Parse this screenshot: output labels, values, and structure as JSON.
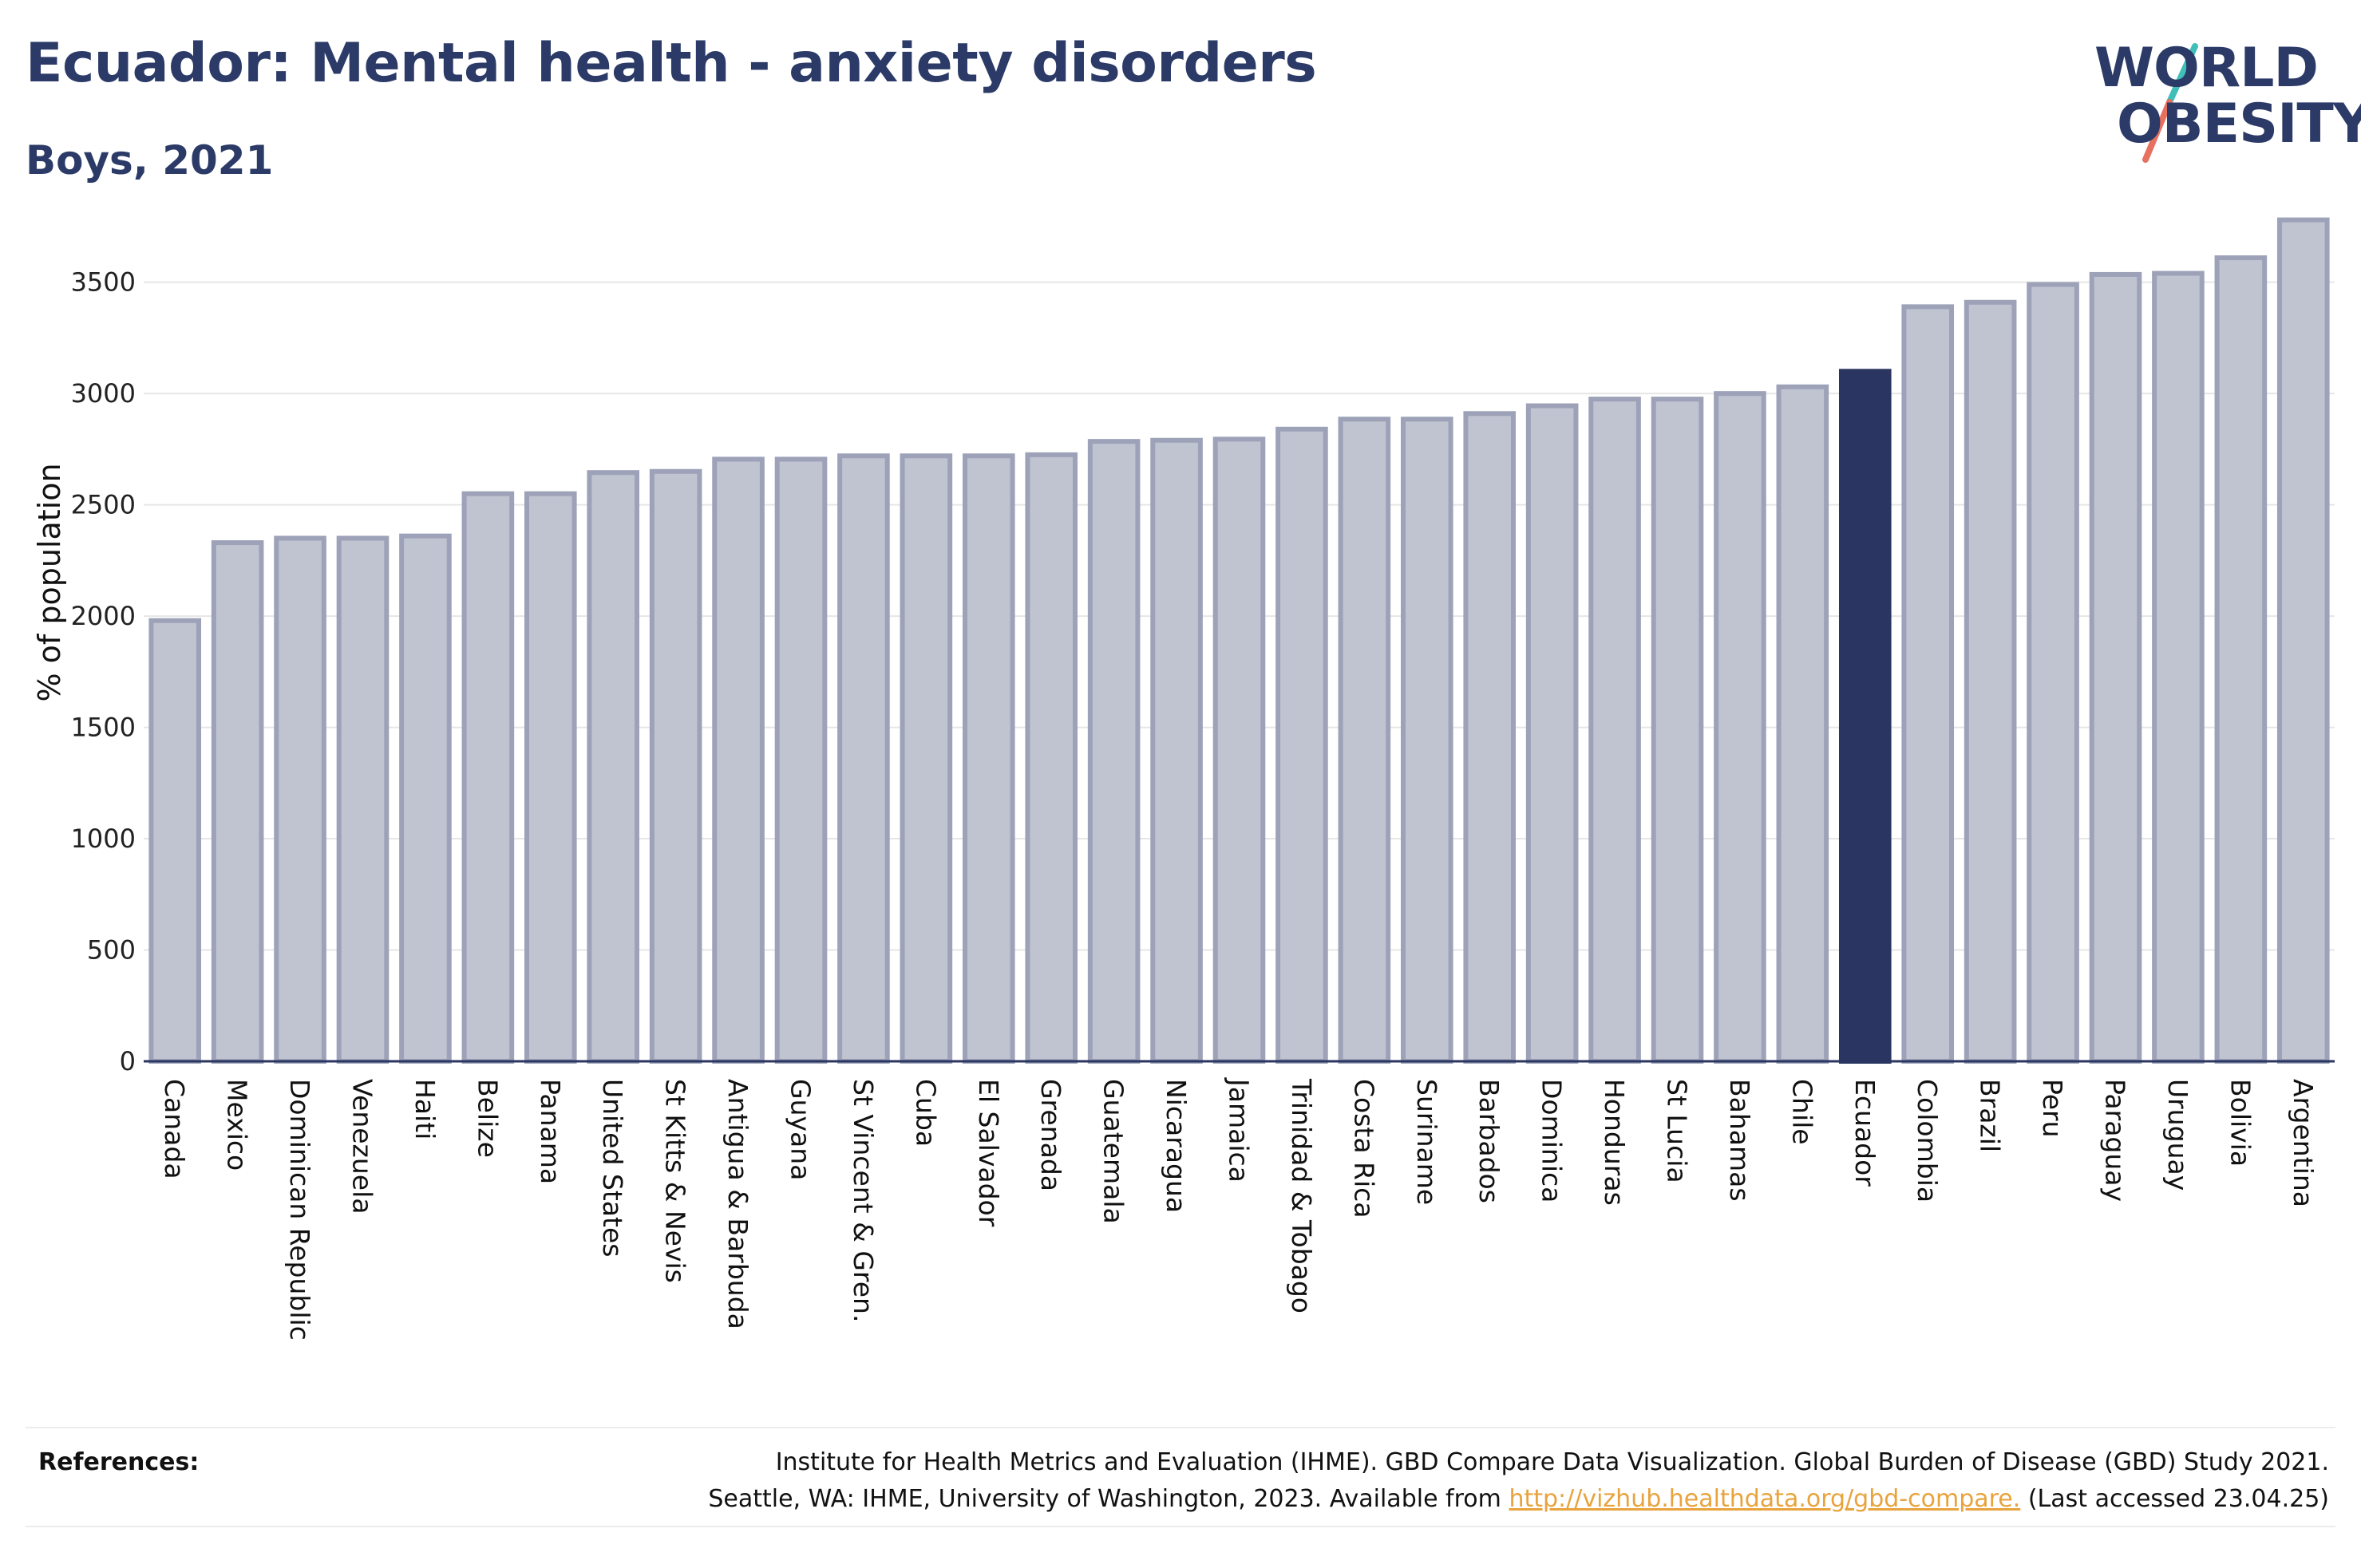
{
  "header": {
    "title": "Ecuador: Mental health - anxiety disorders",
    "subtitle": "Boys, 2021"
  },
  "logo": {
    "line1": "WORLD",
    "line2": "OBESITY",
    "colors": {
      "text": "#2b3a67",
      "slash_top": "#3fbfb8",
      "slash_bottom": "#e8705f"
    }
  },
  "references": {
    "label": "References:",
    "line1": "Institute for Health Metrics and Evaluation (IHME). GBD Compare Data Visualization. Global Burden of Disease (GBD) Study 2021.",
    "line2_prefix": "Seattle, WA: IHME, University of Washington, 2023. Available from",
    "link": "http://vizhub.healthdata.org/gbd-compare.",
    "line2_suffix": "(Last accessed 23.04.25)"
  },
  "chart_data": {
    "type": "bar",
    "ylabel": "% of population",
    "xlabel": "",
    "ylim": [
      0,
      3800
    ],
    "yticks": [
      0,
      500,
      1000,
      1500,
      2000,
      2500,
      3000,
      3500
    ],
    "grid": true,
    "highlight": "Ecuador",
    "colors": {
      "bar": "#c0c3d0",
      "bar_edge": "#9da2b8",
      "highlight": "#2b3561"
    },
    "categories": [
      "Canada",
      "Mexico",
      "Dominican Republic",
      "Venezuela",
      "Haiti",
      "Belize",
      "Panama",
      "United States",
      "St Kitts & Nevis",
      "Antigua & Barbuda",
      "Guyana",
      "St Vincent & Gren.",
      "Cuba",
      "El Salvador",
      "Grenada",
      "Guatemala",
      "Nicaragua",
      "Jamaica",
      "Trinidad & Tobago",
      "Costa Rica",
      "Suriname",
      "Barbados",
      "Dominica",
      "Honduras",
      "St Lucia",
      "Bahamas",
      "Chile",
      "Ecuador",
      "Colombia",
      "Brazil",
      "Peru",
      "Paraguay",
      "Uruguay",
      "Bolivia",
      "Argentina"
    ],
    "values": [
      1980,
      2330,
      2350,
      2350,
      2360,
      2550,
      2550,
      2645,
      2650,
      2705,
      2705,
      2720,
      2720,
      2720,
      2725,
      2785,
      2790,
      2795,
      2840,
      2885,
      2885,
      2910,
      2945,
      2975,
      2975,
      3000,
      3030,
      3100,
      3390,
      3410,
      3490,
      3535,
      3540,
      3610,
      3780
    ]
  }
}
